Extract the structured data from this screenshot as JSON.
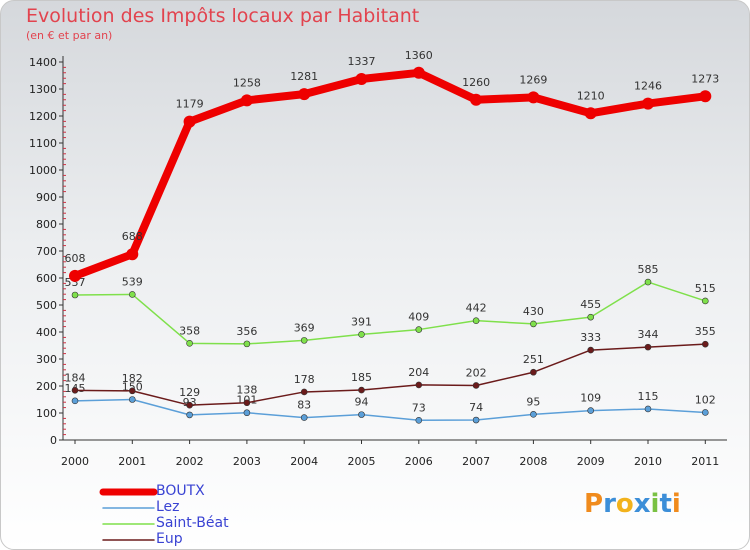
{
  "chart_data": {
    "type": "line",
    "title": "Evolution des Impôts locaux par Habitant",
    "subtitle": "(en € et par an)",
    "categories": [
      "2000",
      "2001",
      "2002",
      "2003",
      "2004",
      "2005",
      "2006",
      "2007",
      "2008",
      "2009",
      "2010",
      "2011"
    ],
    "ylim": [
      0,
      1400
    ],
    "yticks": [
      0,
      100,
      200,
      300,
      400,
      500,
      600,
      700,
      800,
      900,
      1000,
      1100,
      1200,
      1300,
      1400
    ],
    "grid": false,
    "legend_position": "bottom-left",
    "series": [
      {
        "name": "BOUTX",
        "color": "#ee0000",
        "values": [
          608,
          688,
          1179,
          1258,
          1281,
          1337,
          1360,
          1260,
          1269,
          1210,
          1246,
          1273
        ],
        "labels": [
          "608",
          "688",
          "1179",
          "1258",
          "1281",
          "1337",
          "1360",
          "1260",
          "1269",
          "1210",
          "1246",
          "1273"
        ]
      },
      {
        "name": "Lez",
        "color": "#5b9fd8",
        "values": [
          145,
          150,
          93,
          101,
          83,
          94,
          73,
          74,
          95,
          109,
          115,
          102
        ],
        "labels": [
          "145",
          "150",
          "93",
          "101",
          "83",
          "94",
          "73",
          "74",
          "95",
          "109",
          "115",
          "102"
        ]
      },
      {
        "name": "Saint-Béat",
        "color": "#7fe04b",
        "values": [
          537,
          539,
          358,
          356,
          369,
          391,
          409,
          442,
          430,
          455,
          585,
          515
        ],
        "labels": [
          "537",
          "539",
          "358",
          "356",
          "369",
          "391",
          "409",
          "442",
          "430",
          "455",
          "585",
          "515"
        ]
      },
      {
        "name": "Eup",
        "color": "#6b1b1b",
        "values": [
          184,
          182,
          129,
          138,
          178,
          185,
          204,
          202,
          251,
          333,
          344,
          355
        ],
        "labels": [
          "184",
          "182",
          "129",
          "138",
          "178",
          "185",
          "204",
          "202",
          "251",
          "333",
          "344",
          "355"
        ]
      }
    ]
  },
  "logo": {
    "text": "Proxiti",
    "letters": [
      {
        "ch": "P",
        "color": "#f08b1d"
      },
      {
        "ch": "r",
        "color": "#3c8ed8"
      },
      {
        "ch": "o",
        "color": "#f2b21c"
      },
      {
        "ch": "x",
        "color": "#3c8ed8"
      },
      {
        "ch": "i",
        "color": "#7ac143"
      },
      {
        "ch": "t",
        "color": "#3c8ed8"
      },
      {
        "ch": "i",
        "color": "#f08b1d"
      }
    ]
  }
}
